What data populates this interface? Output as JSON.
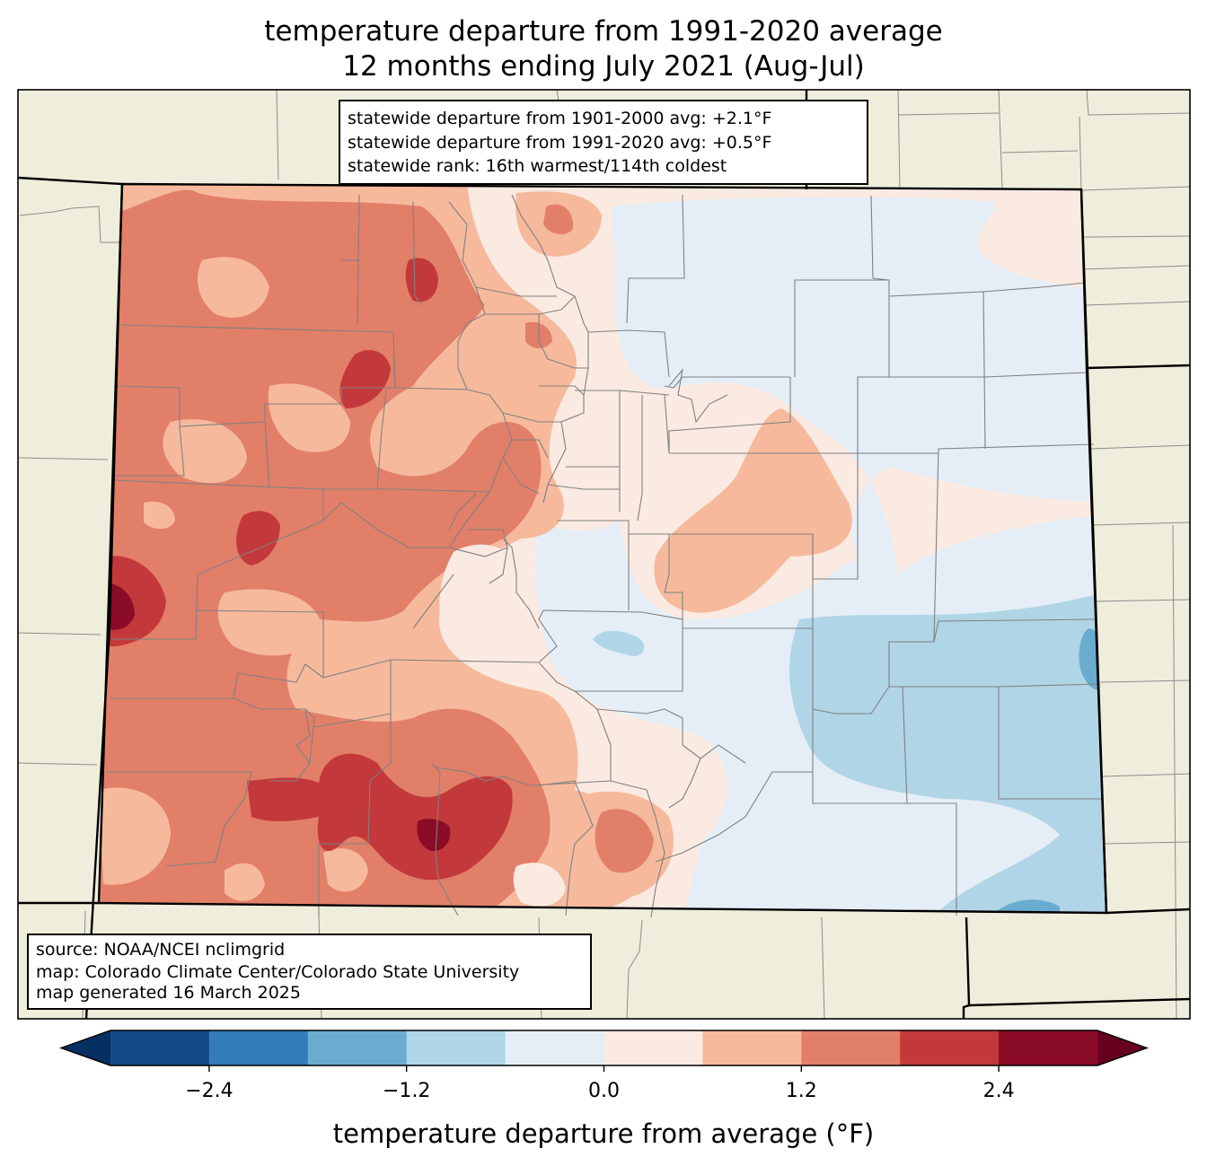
{
  "title": {
    "line1": "temperature departure from 1991-2020 average",
    "line2": "12 months ending July 2021 (Aug-Jul)"
  },
  "stats_box": {
    "line1": "statewide departure from 1901-2000 avg: +2.1°F",
    "line2": "statewide departure from 1991-2020 avg: +0.5°F",
    "line3": "statewide rank: 16th warmest/114th coldest"
  },
  "source_box": {
    "line1": "source: NOAA/NCEI nclimgrid",
    "line2": "map: Colorado Climate Center/Colorado State University",
    "line3": "map generated 16 March 2025"
  },
  "colorbar": {
    "label": "temperature departure from average (°F)",
    "ticks": [
      -2.4,
      -1.2,
      0.0,
      1.2,
      2.4
    ],
    "tick_labels": [
      "−2.4",
      "−1.2",
      "0.0",
      "1.2",
      "2.4"
    ],
    "range": [
      -3.0,
      3.0
    ],
    "bins": [
      {
        "min": -3.0,
        "max": -2.4,
        "color": "#134b87"
      },
      {
        "min": -2.4,
        "max": -1.8,
        "color": "#327cb7"
      },
      {
        "min": -1.8,
        "max": -1.2,
        "color": "#6aacd0"
      },
      {
        "min": -1.2,
        "max": -0.6,
        "color": "#b0d5e7"
      },
      {
        "min": -0.6,
        "max": 0.0,
        "color": "#e5eef6"
      },
      {
        "min": 0.0,
        "max": 0.6,
        "color": "#faeae1"
      },
      {
        "min": 0.6,
        "max": 1.2,
        "color": "#f6b99c"
      },
      {
        "min": 1.2,
        "max": 1.8,
        "color": "#e27f69"
      },
      {
        "min": 1.8,
        "max": 2.4,
        "color": "#c3393b"
      },
      {
        "min": 2.4,
        "max": 3.0,
        "color": "#8a0c26"
      }
    ],
    "under_color": "#053061",
    "over_color": "#67001f"
  },
  "colors": {
    "land": "#efeedc",
    "state_border": "#000000",
    "county_border": "#808080"
  }
}
